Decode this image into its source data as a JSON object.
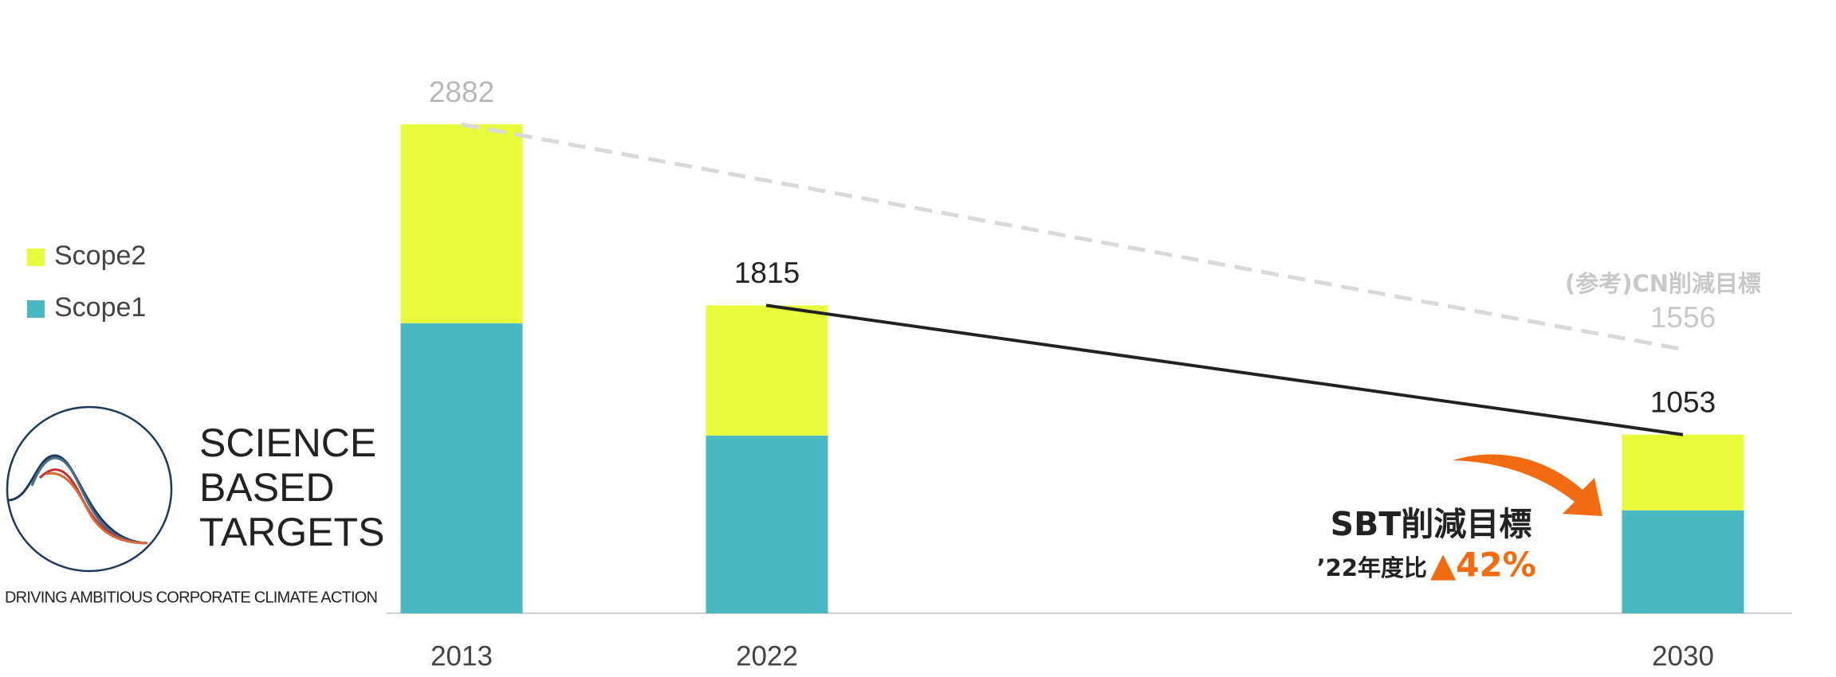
{
  "chart_data": {
    "type": "stacked_bar",
    "categories": [
      "2013",
      "2022",
      "2030"
    ],
    "series": [
      {
        "name": "Scope1",
        "color": "#48b8c1",
        "values": [
          1710,
          1048,
          607
        ]
      },
      {
        "name": "Scope2",
        "color": "#e8fc3c",
        "values": [
          1172,
          767,
          446
        ]
      }
    ],
    "totals": [
      2882,
      1815,
      1053
    ],
    "ylim": [
      0,
      3000
    ],
    "reference": {
      "label": "(参考)CN削減目標",
      "value": 1556
    },
    "annotation": {
      "title": "SBT削減目標",
      "prefix": "’22年度比",
      "reduction": "▲42%"
    },
    "logo": {
      "lines": [
        "SCIENCE",
        "BASED",
        "TARGETS"
      ],
      "tagline": "DRIVING AMBITIOUS CORPORATE CLIMATE ACTION"
    }
  }
}
